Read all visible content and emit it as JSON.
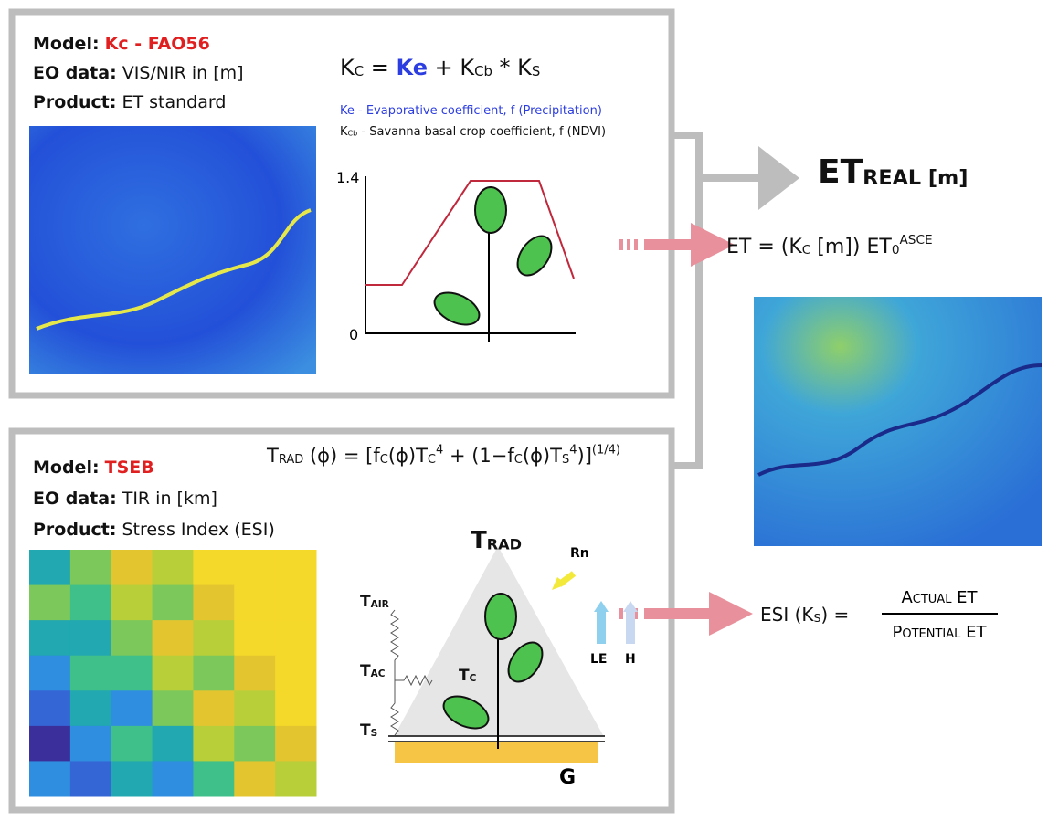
{
  "top_panel": {
    "model_label": "Model:",
    "model": "Kc - FAO56",
    "eo_label": "EO data:",
    "eo": "VIS/NIR in [m]",
    "product_label": "Product:",
    "product": "ET standard",
    "formula": [
      {
        "t": "K"
      },
      {
        "t": "C",
        "s": "sub"
      },
      {
        "t": " = "
      },
      {
        "t": "Ke",
        "s": "blue"
      },
      {
        "t": " + K"
      },
      {
        "t": "Cb",
        "s": "sub"
      },
      {
        "t": " * K"
      },
      {
        "t": "S",
        "s": "sub"
      }
    ],
    "legend_ke": "Ke - Evaporative coefficient, f (Precipitation)",
    "legend_kcb": [
      {
        "t": "K"
      },
      {
        "t": "Cb",
        "s": "sub"
      },
      {
        "t": " - Savanna basal crop coefficient, f (NDVI)"
      }
    ],
    "axis_max": "1.4",
    "axis_min": "0"
  },
  "output": {
    "et_real": [
      {
        "t": "ET"
      },
      {
        "t": "REAL  [m]",
        "s": "sub"
      }
    ],
    "et_formula": [
      {
        "t": "ET  = (K"
      },
      {
        "t": "C",
        "s": "sub"
      },
      {
        "t": " [m]) ET"
      },
      {
        "t": "0",
        "s": "sub"
      },
      {
        "t": "ASCE",
        "s": "sup"
      }
    ],
    "esi_left": [
      {
        "t": "ESI  (K"
      },
      {
        "t": "S",
        "s": "sub"
      },
      {
        "t": ") ="
      }
    ],
    "esi_numerator": "Actual ET",
    "esi_denominator": "Potential ET"
  },
  "bottom_panel": {
    "model_label": "Model:",
    "model": "TSEB",
    "eo_label": "EO data:",
    "eo": "TIR in [km]",
    "product_label": "Product:",
    "product": "Stress Index (ESI)",
    "formula": [
      {
        "t": "T"
      },
      {
        "t": "RAD",
        "s": "sub"
      },
      {
        "t": " (ϕ) = [f"
      },
      {
        "t": "C",
        "s": "sub"
      },
      {
        "t": "(ϕ)T"
      },
      {
        "t": "C",
        "s": "sub"
      },
      {
        "t": "4",
        "s": "sup"
      },
      {
        "t": " + (1−f"
      },
      {
        "t": "C",
        "s": "sub"
      },
      {
        "t": "(ϕ)T"
      },
      {
        "t": "S",
        "s": "sub"
      },
      {
        "t": "4",
        "s": "sup"
      },
      {
        "t": ")]"
      },
      {
        "t": "(1/4)",
        "s": "sup"
      }
    ],
    "t_rad": [
      {
        "t": "T"
      },
      {
        "t": "RAD",
        "s": "sub"
      }
    ],
    "rn": "Rn",
    "t_air": [
      {
        "t": "T"
      },
      {
        "t": "AIR",
        "s": "sub"
      }
    ],
    "t_ac": [
      {
        "t": "T"
      },
      {
        "t": "AC",
        "s": "sub"
      }
    ],
    "t_c": [
      {
        "t": "T"
      },
      {
        "t": "C",
        "s": "sub"
      }
    ],
    "t_s": [
      {
        "t": "T"
      },
      {
        "t": "S",
        "s": "sub"
      }
    ],
    "le": "LE",
    "h": "H",
    "g": "G"
  }
}
